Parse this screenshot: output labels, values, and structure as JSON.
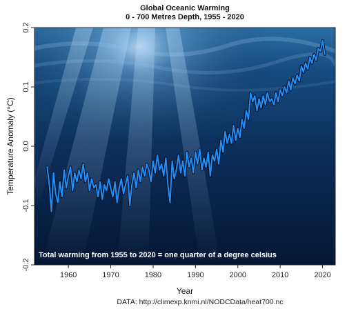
{
  "chart_data": {
    "type": "line",
    "title": "Global Oceanic Warming",
    "subtitle": "0 - 700 Metres Depth, 1955 - 2020",
    "xlabel": "Year",
    "ylabel": "Temperature Anomaly (°C)",
    "xlim": [
      1952,
      2023
    ],
    "ylim": [
      -0.2,
      0.2
    ],
    "xticks": [
      1960,
      1970,
      1980,
      1990,
      2000,
      2010,
      2020
    ],
    "yticks": [
      -0.2,
      -0.1,
      0.0,
      0.1,
      0.2
    ],
    "ytick_labels": [
      "-0.2",
      "-0.1",
      "0.0",
      "0.1",
      "0.2"
    ],
    "annotation": "Total warming from 1955 to 2020 = one quarter of a degree celsius",
    "grid": false,
    "line_color": "#1e90ff",
    "outline_color": "#0a0f1e",
    "x": [
      1955.0,
      1955.5,
      1956.0,
      1956.5,
      1957.0,
      1957.5,
      1958.0,
      1958.5,
      1959.0,
      1959.5,
      1960.0,
      1960.5,
      1961.0,
      1961.5,
      1962.0,
      1962.5,
      1963.0,
      1963.5,
      1964.0,
      1964.5,
      1965.0,
      1965.5,
      1966.0,
      1966.5,
      1967.0,
      1967.5,
      1968.0,
      1968.5,
      1969.0,
      1969.5,
      1970.0,
      1970.5,
      1971.0,
      1971.5,
      1972.0,
      1972.5,
      1973.0,
      1973.5,
      1974.0,
      1974.5,
      1975.0,
      1975.5,
      1976.0,
      1976.5,
      1977.0,
      1977.5,
      1978.0,
      1978.5,
      1979.0,
      1979.5,
      1980.0,
      1980.5,
      1981.0,
      1981.5,
      1982.0,
      1982.5,
      1983.0,
      1983.5,
      1984.0,
      1984.5,
      1985.0,
      1985.5,
      1986.0,
      1986.5,
      1987.0,
      1987.5,
      1988.0,
      1988.5,
      1989.0,
      1989.5,
      1990.0,
      1990.5,
      1991.0,
      1991.5,
      1992.0,
      1992.5,
      1993.0,
      1993.5,
      1994.0,
      1994.5,
      1995.0,
      1995.5,
      1996.0,
      1996.5,
      1997.0,
      1997.5,
      1998.0,
      1998.5,
      1999.0,
      1999.5,
      2000.0,
      2000.5,
      2001.0,
      2001.5,
      2002.0,
      2002.5,
      2003.0,
      2003.5,
      2004.0,
      2004.5,
      2005.0,
      2005.5,
      2006.0,
      2006.5,
      2007.0,
      2007.5,
      2008.0,
      2008.5,
      2009.0,
      2009.5,
      2010.0,
      2010.5,
      2011.0,
      2011.5,
      2012.0,
      2012.5,
      2013.0,
      2013.5,
      2014.0,
      2014.5,
      2015.0,
      2015.5,
      2016.0,
      2016.5,
      2017.0,
      2017.5,
      2018.0,
      2018.5,
      2019.0,
      2019.5,
      2020.0,
      2020.5
    ],
    "values": [
      -0.035,
      -0.065,
      -0.11,
      -0.045,
      -0.08,
      -0.095,
      -0.06,
      -0.085,
      -0.04,
      -0.07,
      -0.05,
      -0.035,
      -0.075,
      -0.045,
      -0.06,
      -0.04,
      -0.055,
      -0.03,
      -0.06,
      -0.045,
      -0.075,
      -0.055,
      -0.07,
      -0.065,
      -0.085,
      -0.06,
      -0.09,
      -0.065,
      -0.075,
      -0.055,
      -0.07,
      -0.085,
      -0.06,
      -0.095,
      -0.07,
      -0.055,
      -0.08,
      -0.065,
      -0.05,
      -0.1,
      -0.065,
      -0.045,
      -0.07,
      -0.04,
      -0.06,
      -0.035,
      -0.05,
      -0.03,
      -0.04,
      -0.06,
      -0.025,
      -0.045,
      -0.015,
      -0.04,
      -0.03,
      -0.05,
      -0.02,
      -0.065,
      -0.095,
      -0.025,
      -0.055,
      -0.04,
      -0.015,
      -0.045,
      -0.025,
      -0.05,
      -0.01,
      -0.035,
      -0.02,
      -0.045,
      -0.01,
      -0.03,
      -0.005,
      -0.04,
      -0.02,
      -0.035,
      -0.01,
      -0.05,
      -0.015,
      -0.025,
      -0.005,
      -0.03,
      0.01,
      -0.01,
      0.025,
      0.005,
      0.02,
      0.005,
      0.035,
      0.01,
      0.03,
      0.015,
      0.045,
      0.03,
      0.06,
      0.045,
      0.09,
      0.075,
      0.085,
      0.06,
      0.08,
      0.065,
      0.085,
      0.07,
      0.09,
      0.075,
      0.08,
      0.07,
      0.09,
      0.075,
      0.095,
      0.085,
      0.1,
      0.09,
      0.11,
      0.095,
      0.115,
      0.105,
      0.12,
      0.11,
      0.135,
      0.125,
      0.14,
      0.13,
      0.15,
      0.14,
      0.155,
      0.145,
      0.165,
      0.16,
      0.178,
      0.155
    ]
  },
  "source": "DATA: http://climexp.knmi.nl/NODCData/heat700.nc",
  "background": {
    "deep": "#061633",
    "mid": "#0b2b57",
    "light": "#1f5a8f"
  }
}
